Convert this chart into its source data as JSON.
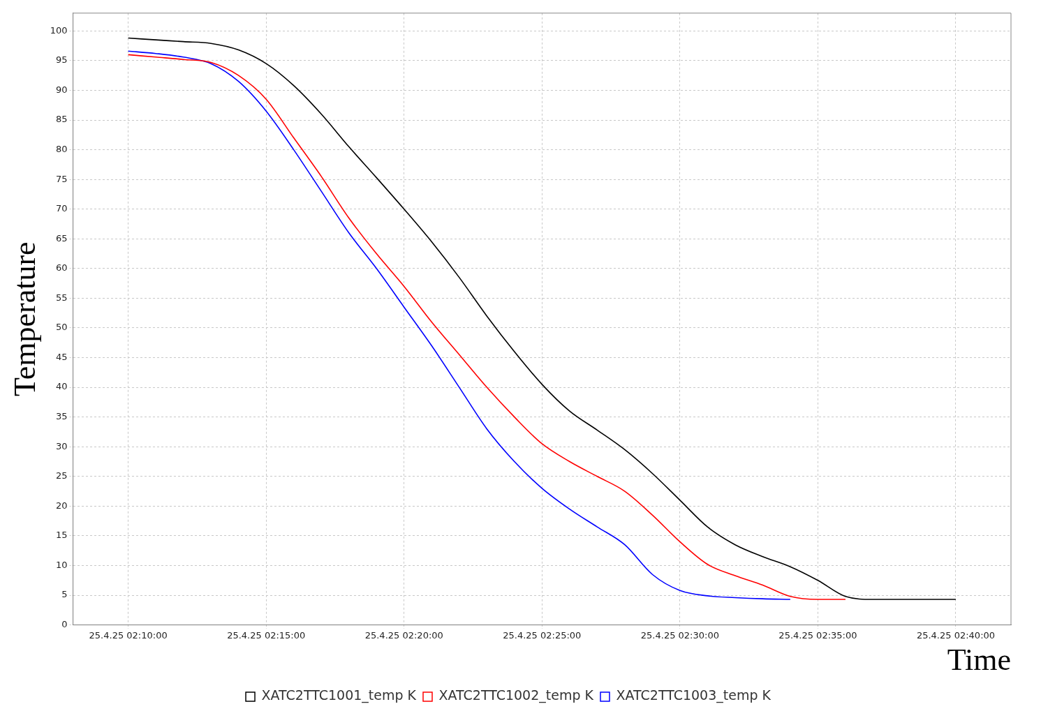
{
  "chart_data": {
    "type": "line",
    "xlabel": "Time",
    "ylabel": "Temperature",
    "x": [
      "--04-25T02:10",
      "--04-25T02:11",
      "--04-25T02:12",
      "--04-25T02:13",
      "--04-25T02:14",
      "--04-25T02:15",
      "--04-25T02:16",
      "--04-25T02:17",
      "--04-25T02:18",
      "--04-25T02:19",
      "--04-25T02:20",
      "--04-25T02:21",
      "--04-25T02:22",
      "--04-25T02:23",
      "--04-25T02:24",
      "--04-25T02:25",
      "--04-25T02:26",
      "--04-25T02:27",
      "--04-25T02:28",
      "--04-25T02:29",
      "--04-25T02:30",
      "--04-25T02:31",
      "--04-25T02:32",
      "--04-25T02:33",
      "--04-25T02:34",
      "--04-25T02:35",
      "--04-25T02:36",
      "--04-25T02:37",
      "--04-25T02:38",
      "--04-25T02:39",
      "--04-25T02:40"
    ],
    "series": [
      {
        "name": "XATC2TTC1001_temp K",
        "color": "#000000",
        "values": [
          98.8,
          98.5,
          98.2,
          97.9,
          96.8,
          94.5,
          90.8,
          86,
          80.5,
          75.3,
          70,
          64.5,
          58.5,
          52,
          46,
          40.5,
          36,
          32.8,
          29.5,
          25.5,
          21,
          16.5,
          13.5,
          11.5,
          9.8,
          7.5,
          4.8,
          4.3,
          4.3,
          4.3,
          4.3
        ]
      },
      {
        "name": "XATC2TTC1002_temp K",
        "color": "#ff0000",
        "values": [
          96,
          95.6,
          95.2,
          94.7,
          92.5,
          88.5,
          82,
          75.5,
          68.5,
          62.5,
          57,
          51,
          45.5,
          40,
          35,
          30.5,
          27.5,
          25,
          22.5,
          18.5,
          14,
          10.2,
          8.3,
          6.7,
          4.8,
          4.3,
          4.3,
          null,
          null,
          null,
          null
        ]
      },
      {
        "name": "XATC2TTC1003_temp K",
        "color": "#0000ff",
        "values": [
          96.6,
          96.2,
          95.6,
          94.5,
          91.5,
          86.5,
          80,
          73,
          66,
          60,
          53.5,
          47,
          40,
          33,
          27.5,
          23,
          19.5,
          16.5,
          13.5,
          8.5,
          5.8,
          4.9,
          4.6,
          4.4,
          4.3,
          null,
          null,
          null,
          null,
          null,
          null
        ]
      }
    ],
    "xlim": [
      "--04-25T02:08",
      "--04-25T02:42"
    ],
    "xticks": [
      {
        "value": "--04-25T02:10",
        "label": "25.4.25 02:10:00"
      },
      {
        "value": "--04-25T02:15",
        "label": "25.4.25 02:15:00"
      },
      {
        "value": "--04-25T02:20",
        "label": "25.4.25 02:20:00"
      },
      {
        "value": "--04-25T02:25",
        "label": "25.4.25 02:25:00"
      },
      {
        "value": "--04-25T02:30",
        "label": "25.4.25 02:30:00"
      },
      {
        "value": "--04-25T02:35",
        "label": "25.4.25 02:35:00"
      },
      {
        "value": "--04-25T02:40",
        "label": "25.4.25 02:40:00"
      }
    ],
    "ylim": [
      0,
      103
    ],
    "yticks": [
      0,
      5,
      10,
      15,
      20,
      25,
      30,
      35,
      40,
      45,
      50,
      55,
      60,
      65,
      70,
      75,
      80,
      85,
      90,
      95,
      100
    ],
    "grid": true,
    "legend": "bottom",
    "marker": "none",
    "line_style": "solid"
  }
}
